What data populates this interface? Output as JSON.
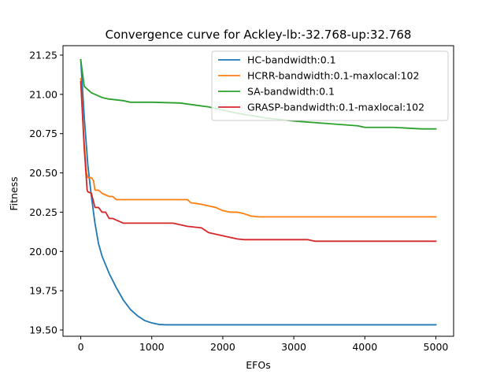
{
  "chart_data": {
    "type": "line",
    "title": "Convergence curve for Ackley-lb:-32.768-up:32.768",
    "xlabel": "EFOs",
    "ylabel": "Fitness",
    "xlim": [
      -250,
      5250
    ],
    "ylim": [
      19.46,
      21.31
    ],
    "xticks": [
      0,
      1000,
      2000,
      3000,
      4000,
      5000
    ],
    "xtick_labels": [
      "0",
      "1000",
      "2000",
      "3000",
      "4000",
      "5000"
    ],
    "yticks": [
      19.5,
      19.75,
      20.0,
      20.25,
      20.5,
      20.75,
      21.0,
      21.25
    ],
    "ytick_labels": [
      "19.50",
      "19.75",
      "20.00",
      "20.25",
      "20.50",
      "20.75",
      "21.00",
      "21.25"
    ],
    "grid": false,
    "legend_position": "top-right",
    "series": [
      {
        "name": "HC-bandwidth:0.1",
        "color": "#1f77b4",
        "x": [
          0,
          50,
          100,
          150,
          200,
          250,
          300,
          400,
          500,
          600,
          700,
          800,
          900,
          1000,
          1100,
          1200,
          1500,
          2000,
          3000,
          4000,
          5000
        ],
        "y": [
          21.22,
          20.85,
          20.55,
          20.35,
          20.18,
          20.05,
          19.97,
          19.86,
          19.77,
          19.69,
          19.63,
          19.59,
          19.56,
          19.545,
          19.535,
          19.533,
          19.533,
          19.533,
          19.533,
          19.533,
          19.533
        ]
      },
      {
        "name": "HCRR-bandwidth:0.1-maxlocal:102",
        "color": "#ff7f0e",
        "x": [
          0,
          40,
          80,
          100,
          150,
          180,
          200,
          250,
          300,
          350,
          400,
          450,
          500,
          700,
          1000,
          1500,
          1550,
          1700,
          1800,
          1900,
          2000,
          2100,
          2200,
          2300,
          2400,
          2500,
          3000,
          4000,
          5000
        ],
        "y": [
          21.1,
          20.75,
          20.5,
          20.47,
          20.47,
          20.45,
          20.39,
          20.39,
          20.37,
          20.36,
          20.35,
          20.35,
          20.33,
          20.33,
          20.33,
          20.33,
          20.31,
          20.3,
          20.29,
          20.28,
          20.26,
          20.25,
          20.25,
          20.24,
          20.225,
          20.22,
          20.22,
          20.22,
          20.22
        ]
      },
      {
        "name": "SA-bandwidth:0.1",
        "color": "#2ca02c",
        "x": [
          0,
          20,
          50,
          100,
          150,
          200,
          300,
          400,
          500,
          600,
          700,
          800,
          1000,
          1400,
          1800,
          2200,
          2600,
          3000,
          3300,
          3600,
          3900,
          4000,
          4400,
          4800,
          5000
        ],
        "y": [
          21.22,
          21.15,
          21.05,
          21.03,
          21.01,
          21.0,
          20.98,
          20.97,
          20.965,
          20.96,
          20.95,
          20.95,
          20.95,
          20.945,
          20.92,
          20.88,
          20.85,
          20.83,
          20.82,
          20.81,
          20.8,
          20.79,
          20.79,
          20.78,
          20.78
        ]
      },
      {
        "name": "GRASP-bandwidth:0.1-maxlocal:102",
        "color": "#d62728",
        "x": [
          0,
          50,
          90,
          100,
          150,
          200,
          250,
          300,
          350,
          400,
          450,
          500,
          600,
          700,
          1000,
          1300,
          1500,
          1700,
          1800,
          1900,
          2000,
          2100,
          2200,
          2300,
          2500,
          3000,
          3200,
          3300,
          4000,
          5000
        ],
        "y": [
          21.08,
          20.65,
          20.39,
          20.38,
          20.37,
          20.28,
          20.28,
          20.25,
          20.25,
          20.21,
          20.21,
          20.2,
          20.18,
          20.18,
          20.18,
          20.18,
          20.16,
          20.15,
          20.12,
          20.11,
          20.1,
          20.09,
          20.08,
          20.075,
          20.075,
          20.075,
          20.075,
          20.065,
          20.065,
          20.065
        ]
      }
    ]
  }
}
